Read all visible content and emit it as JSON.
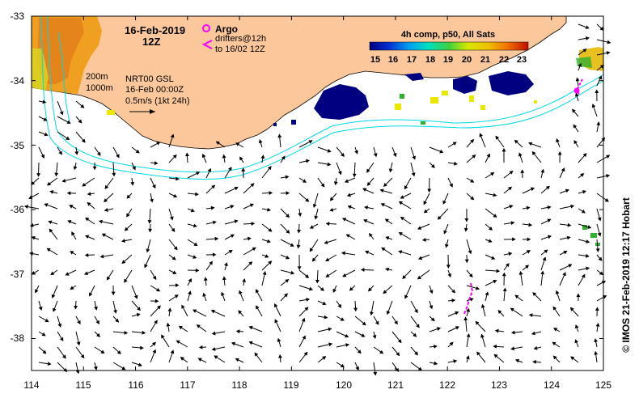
{
  "map": {
    "date_line1": "16-Feb-2019",
    "date_line2": "12Z",
    "argo_label": "Argo",
    "drifters_line1": "drifters@12h",
    "drifters_line2": "to 16/02 12Z",
    "contour_200": "200m",
    "contour_1000": "1000m",
    "gsl_line1": "NRT00 GSL",
    "gsl_line2": "16-Feb 00:00Z",
    "gsl_line3": "0.5m/s (1kt 24h)",
    "colorbar_title": "4h comp, p50, All Sats",
    "colorbar_ticks": [
      "15",
      "16",
      "17",
      "18",
      "19",
      "20",
      "21",
      "22",
      "23"
    ],
    "credit": "© IMOS 21-Feb-2019 12:17 Hobart",
    "lon_ticks": [
      "114",
      "115",
      "116",
      "117",
      "118",
      "119",
      "120",
      "121",
      "122",
      "123",
      "124",
      "125"
    ],
    "lat_ticks": [
      "-33",
      "-34",
      "-35",
      "-36",
      "-37",
      "-38"
    ],
    "colors": {
      "land": "#fcc89b",
      "contour": "#00d8e8",
      "drifter": "#ff00ff",
      "sst_cold": "#000080",
      "sst_yellow": "#e8e800",
      "sst_green": "#20b020"
    }
  }
}
